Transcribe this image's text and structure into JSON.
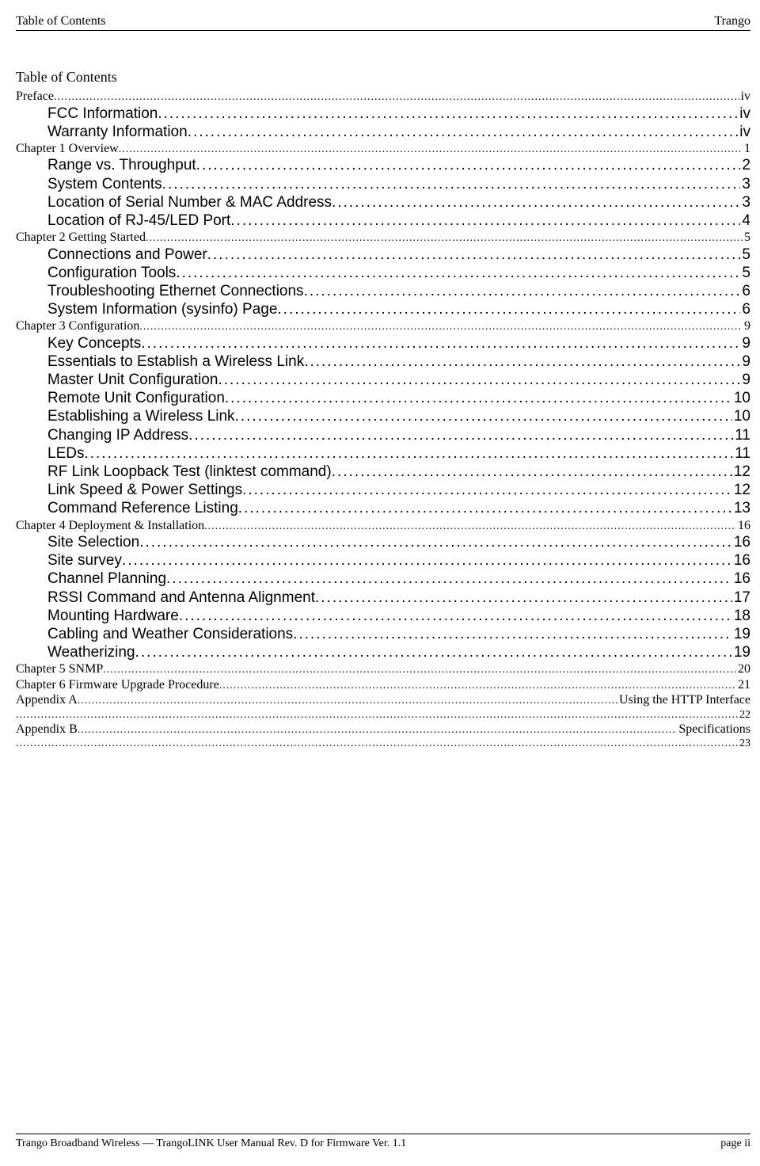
{
  "header": {
    "left": "Table of Contents",
    "right": "Trango"
  },
  "tocTitle": "Table of Contents",
  "entries": [
    {
      "level": 0,
      "label": "Preface",
      "page": "iv"
    },
    {
      "level": 1,
      "label": "FCC Information ",
      "page": "iv"
    },
    {
      "level": 1,
      "label": "Warranty Information ",
      "page": "iv"
    },
    {
      "level": 0,
      "label": "Chapter 1 Overview",
      "page": "1"
    },
    {
      "level": 1,
      "label": "Range vs. Throughput ",
      "page": " 2"
    },
    {
      "level": 1,
      "label": "System Contents ",
      "page": " 3"
    },
    {
      "level": 1,
      "label": "Location of Serial Number & MAC Address",
      "page": " 3"
    },
    {
      "level": 1,
      "label": "Location of RJ-45/LED Port",
      "page": " 4"
    },
    {
      "level": 0,
      "label": "Chapter 2 Getting Started",
      "page": "5"
    },
    {
      "level": 1,
      "label": "Connections and Power",
      "page": " 5"
    },
    {
      "level": 1,
      "label": "Configuration Tools",
      "page": " 5"
    },
    {
      "level": 1,
      "label": "Troubleshooting Ethernet Connections",
      "page": " 6"
    },
    {
      "level": 1,
      "label": "System Information (sysinfo) Page ",
      "page": " 6"
    },
    {
      "level": 0,
      "label": "Chapter 3 Configuration",
      "page": "9"
    },
    {
      "level": 1,
      "label": "Key Concepts ",
      "page": " 9"
    },
    {
      "level": 1,
      "label": "Essentials to Establish a Wireless Link",
      "page": " 9"
    },
    {
      "level": 1,
      "label": "Master Unit Configuration",
      "page": " 9"
    },
    {
      "level": 1,
      "label": "Remote Unit Configuration ",
      "page": " 10"
    },
    {
      "level": 1,
      "label": "Establishing a Wireless Link",
      "page": " 10"
    },
    {
      "level": 1,
      "label": "Changing IP Address",
      "page": " 11"
    },
    {
      "level": 1,
      "label": "LEDs",
      "page": " 11"
    },
    {
      "level": 1,
      "label": "RF Link Loopback Test (linktest command)",
      "page": " 12"
    },
    {
      "level": 1,
      "label": "Link Speed & Power Settings",
      "page": " 12"
    },
    {
      "level": 1,
      "label": "Command Reference Listing",
      "page": " 13"
    },
    {
      "level": 0,
      "label": "Chapter 4 Deployment & Installation",
      "page": "16"
    },
    {
      "level": 1,
      "label": "Site Selection ",
      "page": " 16"
    },
    {
      "level": 1,
      "label": "Site survey",
      "page": " 16"
    },
    {
      "level": 1,
      "label": "Channel Planning",
      "page": " 16"
    },
    {
      "level": 1,
      "label": "RSSI Command and Antenna Alignment",
      "page": " 17"
    },
    {
      "level": 1,
      "label": "Mounting Hardware ",
      "page": " 18"
    },
    {
      "level": 1,
      "label": "Cabling and Weather Considerations",
      "page": " 19"
    },
    {
      "level": 1,
      "label": "Weatherizing",
      "page": " 19"
    },
    {
      "level": 0,
      "label": "Chapter 5 SNMP ",
      "page": "20"
    },
    {
      "level": 0,
      "label": "Chapter 6 Firmware Upgrade Procedure",
      "page": "21"
    },
    {
      "level": 0,
      "label": "Appendix A ",
      "page": "Using the HTTP Interface",
      "noDots": false,
      "special": "wrap",
      "contPage": "22"
    },
    {
      "level": 0,
      "label": "Appendix B ",
      "page": " Specifications",
      "special": "wrap",
      "contPage": "23"
    }
  ],
  "footer": {
    "left": "Trango Broadband Wireless — TrangoLINK User Manual Rev. D for Firmware Ver. 1.1",
    "right": "page ii"
  },
  "style": {
    "pageWidth": 960,
    "pageHeight": 1472,
    "bodyFontSerif": "Times New Roman",
    "bodyFontSans": "Verdana",
    "lvl0FontSize": 16,
    "lvl1FontSize": 19,
    "contFontSize": 14,
    "headerFontSize": 16,
    "footerFontSize": 14,
    "textColor": "#000000",
    "bgColor": "#ffffff",
    "indentLvl1": 40
  }
}
